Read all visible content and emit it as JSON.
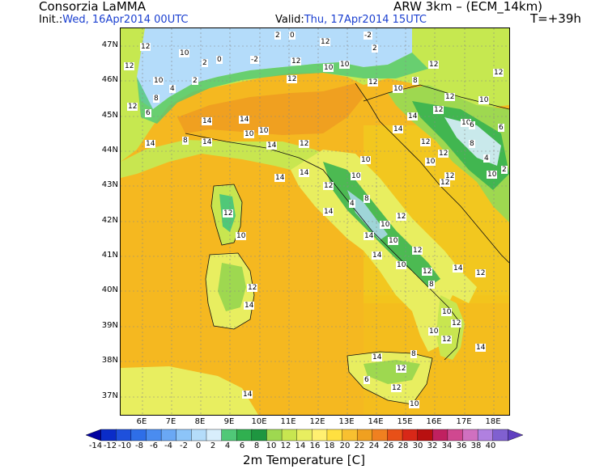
{
  "header": {
    "org": "Consorzia LaMMA",
    "model": "ARW 3km – (ECM_14km)",
    "init_prefix": "Init.:",
    "init_value": "Wed, 16Apr2014 00UTC",
    "valid_prefix": "Valid:",
    "valid_value": "Thu, 17Apr2014 15UTC",
    "lead": "T=+39h"
  },
  "axes": {
    "lat_labels": [
      "47N",
      "46N",
      "45N",
      "44N",
      "43N",
      "42N",
      "41N",
      "40N",
      "39N",
      "38N",
      "37N"
    ],
    "lon_labels": [
      "6E",
      "7E",
      "8E",
      "9E",
      "10E",
      "11E",
      "12E",
      "13E",
      "14E",
      "15E",
      "16E",
      "17E",
      "18E"
    ]
  },
  "colorbar": {
    "labels": [
      "-14",
      "-12",
      "-10",
      "-8",
      "-6",
      "-4",
      "-2",
      "0",
      "2",
      "4",
      "6",
      "8",
      "10",
      "12",
      "14",
      "16",
      "18",
      "20",
      "22",
      "24",
      "26",
      "28",
      "30",
      "32",
      "34",
      "36",
      "38",
      "40"
    ],
    "colors": [
      "#0000a0",
      "#0a2cc8",
      "#1e50dc",
      "#2e6ee8",
      "#4a8cf0",
      "#6aa8f5",
      "#8cc4f8",
      "#b4dcfa",
      "#d8eefc",
      "#50c878",
      "#30b050",
      "#1e9640",
      "#9ed850",
      "#c8e650",
      "#e8ee60",
      "#fff070",
      "#ffe040",
      "#f8c030",
      "#f0a020",
      "#f08020",
      "#e85018",
      "#d82818",
      "#b81010",
      "#c02060",
      "#d04890",
      "#d070c0",
      "#b080e0",
      "#8060d0",
      "#6040c0"
    ],
    "title": "2m Temperature [C]"
  },
  "map_labels": [
    {
      "t": "12"
    },
    {
      "t": "10"
    },
    {
      "t": "2"
    },
    {
      "t": "0"
    },
    {
      "t": "-2"
    },
    {
      "t": "12"
    },
    {
      "t": "10"
    },
    {
      "t": "2"
    },
    {
      "t": "2"
    },
    {
      "t": "0"
    },
    {
      "t": "-2"
    },
    {
      "t": "12"
    },
    {
      "t": "4"
    },
    {
      "t": "2"
    },
    {
      "t": "8"
    },
    {
      "t": "12"
    },
    {
      "t": "14"
    },
    {
      "t": "12"
    },
    {
      "t": "10"
    },
    {
      "t": "12"
    },
    {
      "t": "6"
    },
    {
      "t": "14"
    },
    {
      "t": "8"
    },
    {
      "t": "10"
    },
    {
      "t": "14"
    },
    {
      "t": "12"
    },
    {
      "t": "10"
    },
    {
      "t": "14"
    },
    {
      "t": "12"
    },
    {
      "t": "10"
    },
    {
      "t": "8"
    },
    {
      "t": "4"
    },
    {
      "t": "14"
    },
    {
      "t": "12"
    },
    {
      "t": "10"
    },
    {
      "t": "14"
    },
    {
      "t": "10"
    },
    {
      "t": "12"
    },
    {
      "t": "14"
    },
    {
      "t": "10"
    },
    {
      "t": "12"
    },
    {
      "t": "8"
    },
    {
      "t": "14"
    },
    {
      "t": "12"
    },
    {
      "t": "10"
    },
    {
      "t": "12"
    },
    {
      "t": "14"
    },
    {
      "t": "12"
    },
    {
      "t": "10"
    },
    {
      "t": "14"
    },
    {
      "t": "12"
    },
    {
      "t": "8"
    },
    {
      "t": "6"
    },
    {
      "t": "12"
    },
    {
      "t": "10"
    },
    {
      "t": "14"
    },
    {
      "t": "12"
    },
    {
      "t": "10"
    },
    {
      "t": "14"
    },
    {
      "t": "12"
    },
    {
      "t": "14"
    },
    {
      "t": "12"
    },
    {
      "t": "10"
    },
    {
      "t": "12"
    },
    {
      "t": "10"
    },
    {
      "t": "12"
    },
    {
      "t": "14"
    },
    {
      "t": "12"
    },
    {
      "t": "12"
    },
    {
      "t": "14"
    },
    {
      "t": "10"
    },
    {
      "t": "12"
    },
    {
      "t": "6"
    },
    {
      "t": "4"
    },
    {
      "t": "2"
    },
    {
      "t": "8"
    },
    {
      "t": "6"
    },
    {
      "t": "10"
    },
    {
      "t": "12"
    },
    {
      "t": "10"
    },
    {
      "t": "8"
    },
    {
      "t": "12"
    },
    {
      "t": "10"
    },
    {
      "t": "14"
    },
    {
      "t": "12"
    },
    {
      "t": "10"
    },
    {
      "t": "14"
    }
  ]
}
